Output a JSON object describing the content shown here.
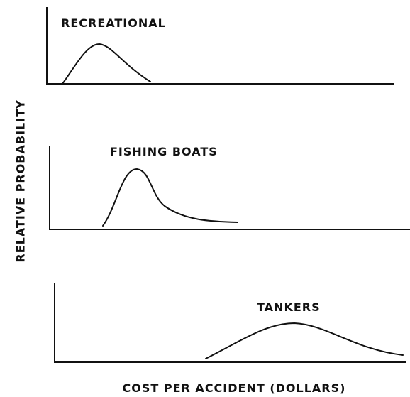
{
  "y_axis_label": "RELATIVE PROBABILITY",
  "x_axis_label": "COST PER ACCIDENT (DOLLARS)",
  "panels": [
    {
      "label": "RECREATIONAL"
    },
    {
      "label": "FISHING BOATS"
    },
    {
      "label": "TANKERS"
    }
  ]
}
